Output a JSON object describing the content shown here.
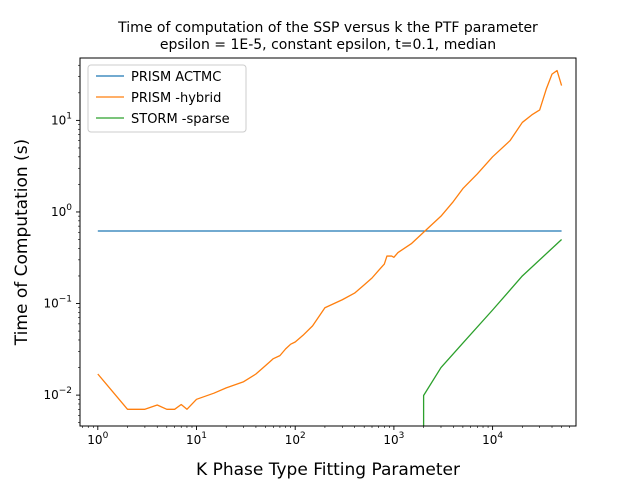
{
  "chart_data": {
    "type": "line",
    "title": "Time of computation of the SSP versus k the PTF parameter",
    "subtitle": "epsilon = 1E-5, constant epsilon, t=0.1, median",
    "xlabel": "K Phase Type Fitting Parameter",
    "ylabel": "Time of Computation (s)",
    "xscale": "log",
    "yscale": "log",
    "xlim": [
      0.66,
      70000
    ],
    "ylim": [
      0.0046,
      48
    ],
    "x_ticks": [
      {
        "value": 1,
        "base": "10",
        "exp": "0"
      },
      {
        "value": 10,
        "base": "10",
        "exp": "1"
      },
      {
        "value": 100,
        "base": "10",
        "exp": "2"
      },
      {
        "value": 1000,
        "base": "10",
        "exp": "3"
      },
      {
        "value": 10000,
        "base": "10",
        "exp": "4"
      }
    ],
    "y_ticks": [
      {
        "value": 0.01,
        "base": "10",
        "exp": "−2"
      },
      {
        "value": 0.1,
        "base": "10",
        "exp": "−1"
      },
      {
        "value": 1,
        "base": "10",
        "exp": "0"
      },
      {
        "value": 10,
        "base": "10",
        "exp": "1"
      }
    ],
    "grid": false,
    "legend_position": "top-left",
    "series": [
      {
        "name": "PRISM ACTMC",
        "color": "#1f77b4",
        "points": [
          [
            1,
            0.62
          ],
          [
            50000,
            0.62
          ]
        ]
      },
      {
        "name": "PRISM -hybrid",
        "color": "#ff7f0e",
        "points": [
          [
            1,
            0.017
          ],
          [
            2,
            0.007
          ],
          [
            3,
            0.007
          ],
          [
            4,
            0.0078
          ],
          [
            5,
            0.007
          ],
          [
            6,
            0.007
          ],
          [
            7,
            0.0079
          ],
          [
            8,
            0.007
          ],
          [
            10,
            0.009
          ],
          [
            15,
            0.0105
          ],
          [
            20,
            0.012
          ],
          [
            30,
            0.014
          ],
          [
            40,
            0.017
          ],
          [
            50,
            0.021
          ],
          [
            55,
            0.023
          ],
          [
            60,
            0.025
          ],
          [
            70,
            0.027
          ],
          [
            80,
            0.032
          ],
          [
            90,
            0.036
          ],
          [
            100,
            0.038
          ],
          [
            120,
            0.045
          ],
          [
            150,
            0.057
          ],
          [
            200,
            0.09
          ],
          [
            300,
            0.11
          ],
          [
            400,
            0.13
          ],
          [
            500,
            0.16
          ],
          [
            600,
            0.19
          ],
          [
            700,
            0.23
          ],
          [
            800,
            0.27
          ],
          [
            850,
            0.33
          ],
          [
            900,
            0.33
          ],
          [
            950,
            0.33
          ],
          [
            1000,
            0.32
          ],
          [
            1100,
            0.36
          ],
          [
            1500,
            0.45
          ],
          [
            2000,
            0.6
          ],
          [
            3000,
            0.9
          ],
          [
            4000,
            1.3
          ],
          [
            5000,
            1.8
          ],
          [
            7000,
            2.6
          ],
          [
            10000,
            4
          ],
          [
            15000,
            6
          ],
          [
            20000,
            9.5
          ],
          [
            25000,
            11.5
          ],
          [
            30000,
            13
          ],
          [
            35000,
            22
          ],
          [
            40000,
            32
          ],
          [
            45000,
            35
          ],
          [
            50000,
            24
          ]
        ]
      },
      {
        "name": "STORM -sparse",
        "color": "#2ca02c",
        "points": [
          [
            2000,
            0.0046
          ],
          [
            2000,
            0.0099
          ],
          [
            3000,
            0.02
          ],
          [
            5000,
            0.037
          ],
          [
            10000,
            0.085
          ],
          [
            20000,
            0.2
          ],
          [
            50000,
            0.5
          ]
        ]
      }
    ]
  }
}
